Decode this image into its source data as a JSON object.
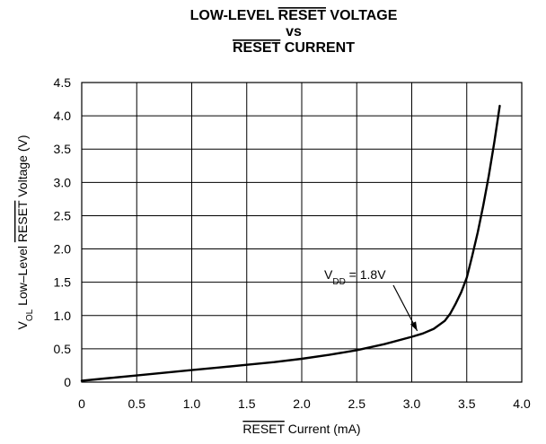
{
  "chart_data": {
    "type": "line",
    "title_lines": [
      {
        "parts": [
          {
            "text": "LOW-LEVEL ",
            "overline": false
          },
          {
            "text": "RESET",
            "overline": true
          },
          {
            "text": " VOLTAGE",
            "overline": false
          }
        ]
      },
      {
        "parts": [
          {
            "text": "vs",
            "overline": false
          }
        ]
      },
      {
        "parts": [
          {
            "text": "RESET",
            "overline": true
          },
          {
            "text": " CURRENT",
            "overline": false
          }
        ]
      }
    ],
    "xlabel_parts": [
      {
        "text": "RESET",
        "overline": true
      },
      {
        "text": " Current (mA)",
        "overline": false
      }
    ],
    "ylabel_parts": [
      {
        "text": "V",
        "overline": false,
        "sub": false
      },
      {
        "text": "OL",
        "overline": false,
        "sub": true
      },
      {
        "text": " Low–Level ",
        "overline": false,
        "sub": false
      },
      {
        "text": "RESET",
        "overline": true,
        "sub": false
      },
      {
        "text": " Voltage (V)",
        "overline": false,
        "sub": false
      }
    ],
    "xlim": [
      0,
      4.0
    ],
    "ylim": [
      0,
      4.5
    ],
    "x_ticks": [
      "0",
      "0.5",
      "1.0",
      "1.5",
      "2.0",
      "2.5",
      "3.0",
      "3.5",
      "4.0"
    ],
    "y_ticks": [
      "0",
      "0.5",
      "1.0",
      "1.5",
      "2.0",
      "2.5",
      "3.0",
      "3.5",
      "4.0",
      "4.5"
    ],
    "grid": true,
    "series": [
      {
        "x": [
          0,
          0.25,
          0.5,
          0.75,
          1.0,
          1.25,
          1.5,
          1.75,
          2.0,
          2.25,
          2.5,
          2.75,
          3.0,
          3.1,
          3.2,
          3.3,
          3.35,
          3.4,
          3.45,
          3.5,
          3.55,
          3.6,
          3.65,
          3.7,
          3.75,
          3.8
        ],
        "y": [
          0.02,
          0.06,
          0.1,
          0.14,
          0.18,
          0.22,
          0.26,
          0.3,
          0.35,
          0.41,
          0.48,
          0.57,
          0.68,
          0.73,
          0.8,
          0.92,
          1.03,
          1.18,
          1.35,
          1.57,
          1.9,
          2.25,
          2.65,
          3.1,
          3.6,
          4.15
        ]
      }
    ],
    "annotation": {
      "parts": [
        {
          "text": "V",
          "sub": false
        },
        {
          "text": "DD",
          "sub": true
        },
        {
          "text": " = 1.8V",
          "sub": false
        }
      ],
      "arrow_target": {
        "x": 3.05,
        "y": 0.77
      }
    }
  }
}
